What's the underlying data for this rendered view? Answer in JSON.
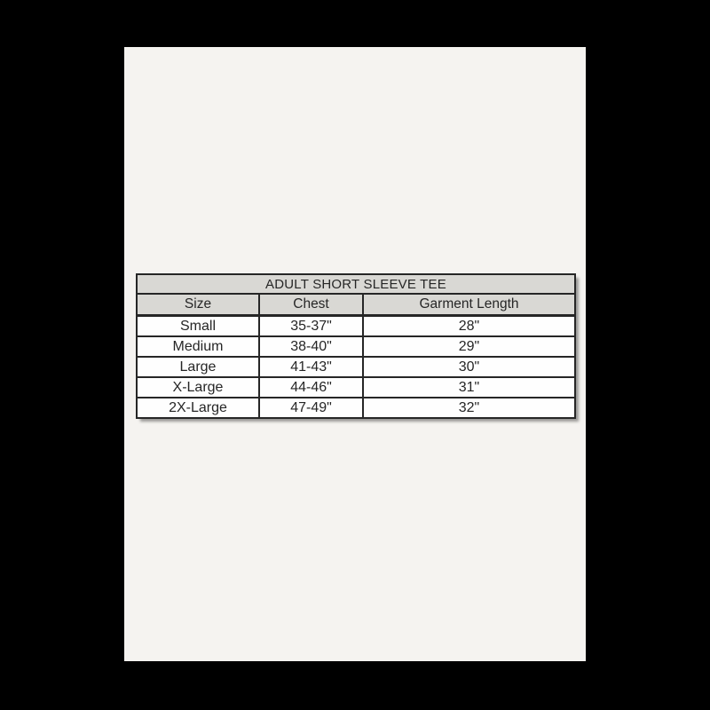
{
  "colors": {
    "bg": "#000000",
    "paper": "#f5f3f0",
    "cell-bg": "#fefefe",
    "header-bg": "#d9d8d4",
    "border": "#262626",
    "text": "#262626"
  },
  "size_chart": {
    "title": "ADULT SHORT SLEEVE TEE",
    "columns": [
      "Size",
      "Chest",
      "Garment Length"
    ],
    "rows": [
      [
        "Small",
        "35-37\"",
        "28\""
      ],
      [
        "Medium",
        "38-40\"",
        "29\""
      ],
      [
        "Large",
        "41-43\"",
        "30\""
      ],
      [
        "X-Large",
        "44-46\"",
        "31\""
      ],
      [
        "2X-Large",
        "47-49\"",
        "32\""
      ]
    ]
  }
}
